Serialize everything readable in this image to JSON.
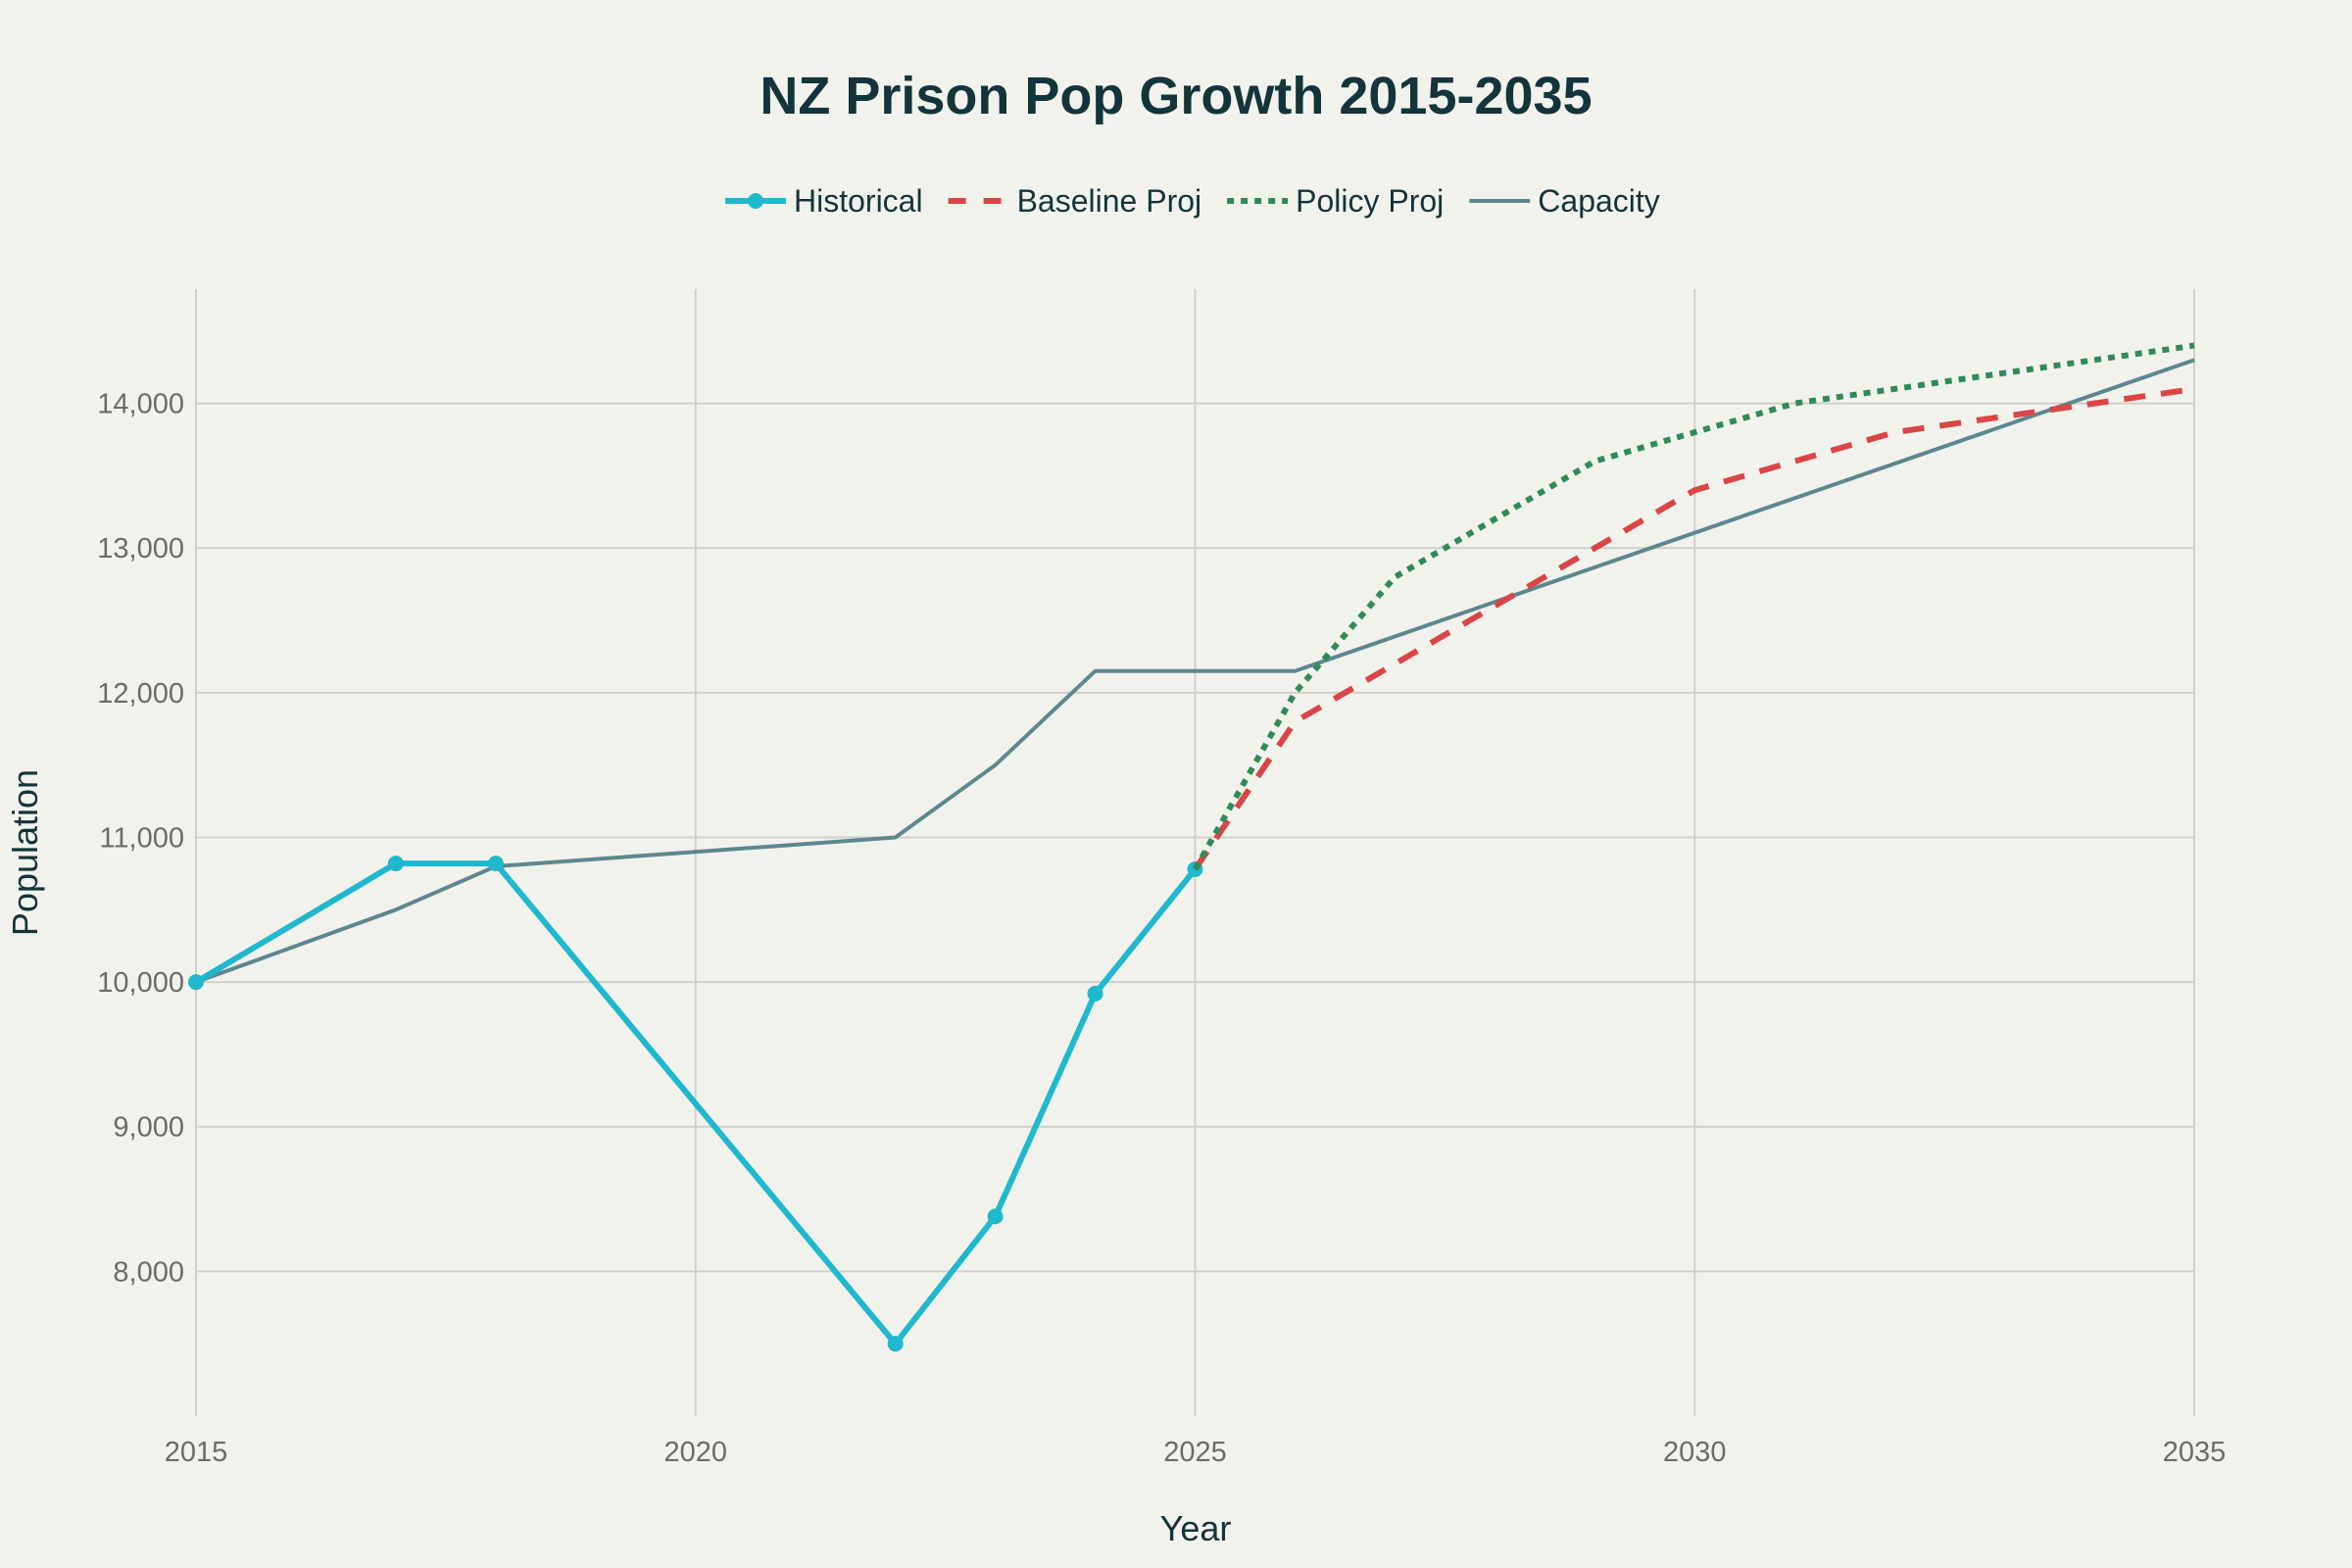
{
  "chart_data": {
    "type": "line",
    "title": "NZ Prison Pop Growth 2015-2035",
    "xlabel": "Year",
    "ylabel": "Population",
    "xlim": [
      2015,
      2035
    ],
    "ylim": [
      7000,
      14790
    ],
    "xticks": [
      2015,
      2020,
      2025,
      2030,
      2035
    ],
    "yticks": [
      8000,
      9000,
      10000,
      11000,
      12000,
      13000,
      14000
    ],
    "ytick_labels": [
      "8,000",
      "9,000",
      "10,000",
      "11,000",
      "12,000",
      "13,000",
      "14,000"
    ],
    "grid": true,
    "legend_position": "top-center",
    "series": [
      {
        "name": "Historical",
        "color": "#1fb8cd",
        "style": "solid-markers",
        "x": [
          2015,
          2017,
          2018,
          2022,
          2023,
          2024,
          2025
        ],
        "y": [
          10000,
          10820,
          10820,
          7500,
          8380,
          9920,
          10780
        ]
      },
      {
        "name": "Baseline Proj",
        "color": "#db4545",
        "style": "dash",
        "x": [
          2025,
          2026,
          2027,
          2028,
          2029,
          2030,
          2031,
          2032,
          2033,
          2034,
          2035
        ],
        "y": [
          10780,
          11800,
          12200,
          12600,
          13000,
          13400,
          13600,
          13800,
          13900,
          14000,
          14100
        ]
      },
      {
        "name": "Policy Proj",
        "color": "#2e8b57",
        "style": "dot",
        "x": [
          2025,
          2026,
          2027,
          2028,
          2029,
          2030,
          2031,
          2032,
          2033,
          2034,
          2035
        ],
        "y": [
          10780,
          12000,
          12800,
          13200,
          13600,
          13800,
          14000,
          14100,
          14200,
          14300,
          14400
        ]
      },
      {
        "name": "Capacity",
        "color": "#5d878f",
        "style": "solid",
        "x": [
          2015,
          2017,
          2018,
          2022,
          2023,
          2024,
          2025,
          2026,
          2035
        ],
        "y": [
          10000,
          10500,
          10800,
          11000,
          11500,
          12150,
          12150,
          12150,
          14300
        ]
      }
    ]
  }
}
